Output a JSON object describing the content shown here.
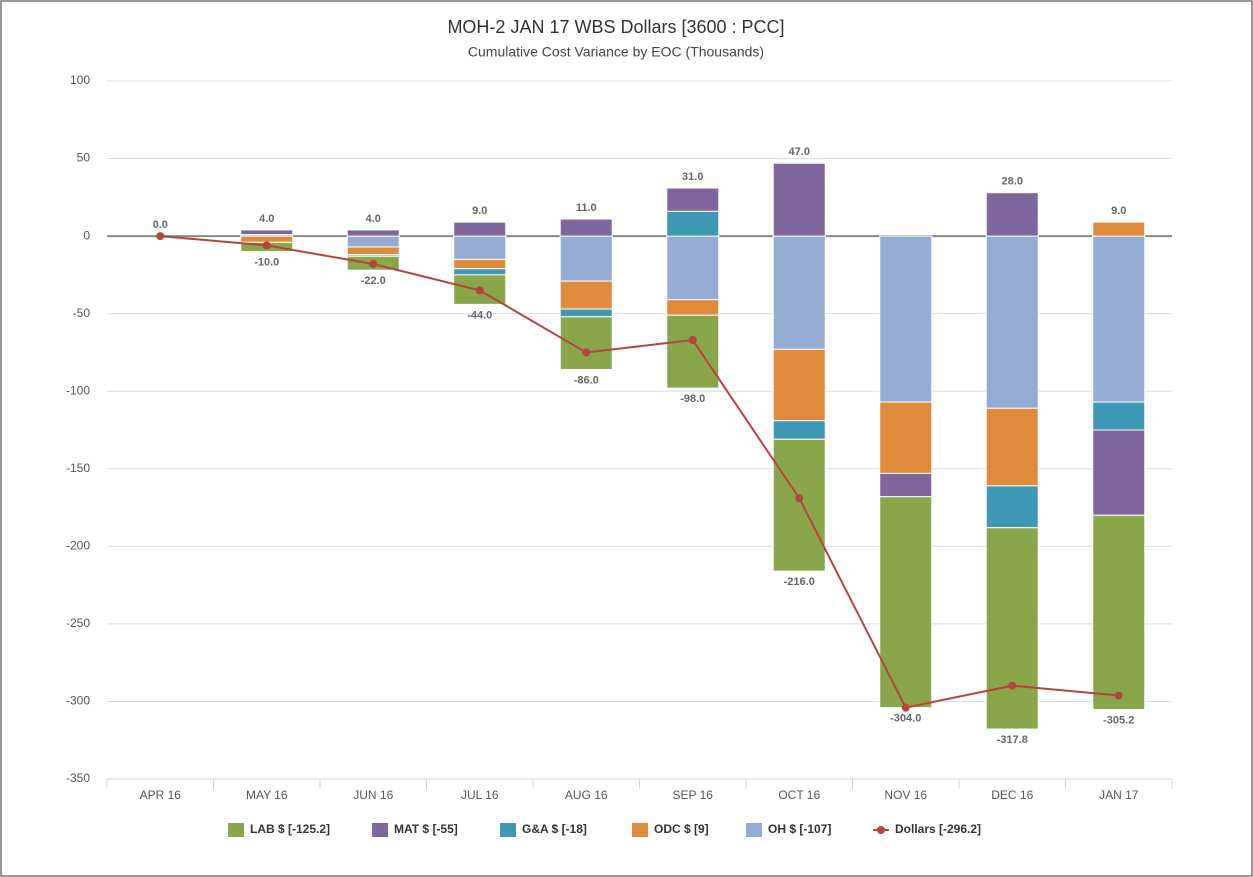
{
  "chart_data": {
    "type": "stacked-bar-line",
    "title": "MOH-2 JAN 17 WBS Dollars [3600 : PCC]",
    "subtitle": "Cumulative Cost Variance by EOC (Thousands)",
    "categories": [
      "APR 16",
      "MAY 16",
      "JUN 16",
      "JUL 16",
      "AUG 16",
      "SEP 16",
      "OCT 16",
      "NOV 16",
      "DEC 16",
      "JAN 17"
    ],
    "series": [
      {
        "name": "LAB $ [-125.2]",
        "type": "bar",
        "color": "#8aa64b",
        "values": [
          0,
          -6,
          -9,
          -19,
          -34,
          -47,
          -85,
          -136,
          -129.8,
          -125.2
        ]
      },
      {
        "name": "MAT $ [-55]",
        "type": "bar",
        "color": "#7f659e",
        "values": [
          0,
          3,
          4,
          9,
          11,
          15,
          47,
          -15,
          28,
          -55
        ]
      },
      {
        "name": "G&A $ [-18]",
        "type": "bar",
        "color": "#3e97b3",
        "values": [
          0,
          0,
          -1,
          -4,
          -5,
          16,
          -12,
          0,
          -27,
          -18
        ]
      },
      {
        "name": "ODC $ [9]",
        "type": "bar",
        "color": "#e08a3c",
        "values": [
          0,
          -4,
          -5,
          -6,
          -18,
          -10,
          -46,
          -46,
          -50,
          9
        ]
      },
      {
        "name": "OH $ [-107]",
        "type": "bar",
        "color": "#94abd3",
        "values": [
          0,
          1,
          -7,
          -15,
          -29,
          -41,
          -73,
          -107,
          -111,
          -107
        ]
      },
      {
        "name": "Dollars [-296.2]",
        "type": "line",
        "color": "#b5443f",
        "values": [
          0,
          -6,
          -18,
          -35,
          -75,
          -67,
          -169,
          -304,
          -289.8,
          -296.2
        ]
      }
    ],
    "stack_totals": {
      "positive": {
        "values": [
          0,
          4,
          4,
          9,
          11,
          31,
          47,
          null,
          28,
          9
        ],
        "value_labels": [
          "0.0",
          "4.0",
          "4.0",
          "9.0",
          "11.0",
          "31.0",
          "47.0",
          null,
          "28.0",
          "9.0"
        ]
      },
      "negative": {
        "values": [
          null,
          -10,
          -22,
          -44,
          -86,
          -98,
          -216,
          -304,
          -317.8,
          -305.2
        ],
        "value_labels": [
          null,
          "-10.0",
          "-22.0",
          "-44.0",
          "-86.0",
          "-98.0",
          "-216.0",
          "-304.0",
          "-317.8",
          "-305.2"
        ]
      }
    },
    "ylim": [
      -350,
      100
    ],
    "yticks": [
      100,
      50,
      0,
      -50,
      -100,
      -150,
      -200,
      -250,
      -300,
      -350
    ],
    "grid": true
  }
}
